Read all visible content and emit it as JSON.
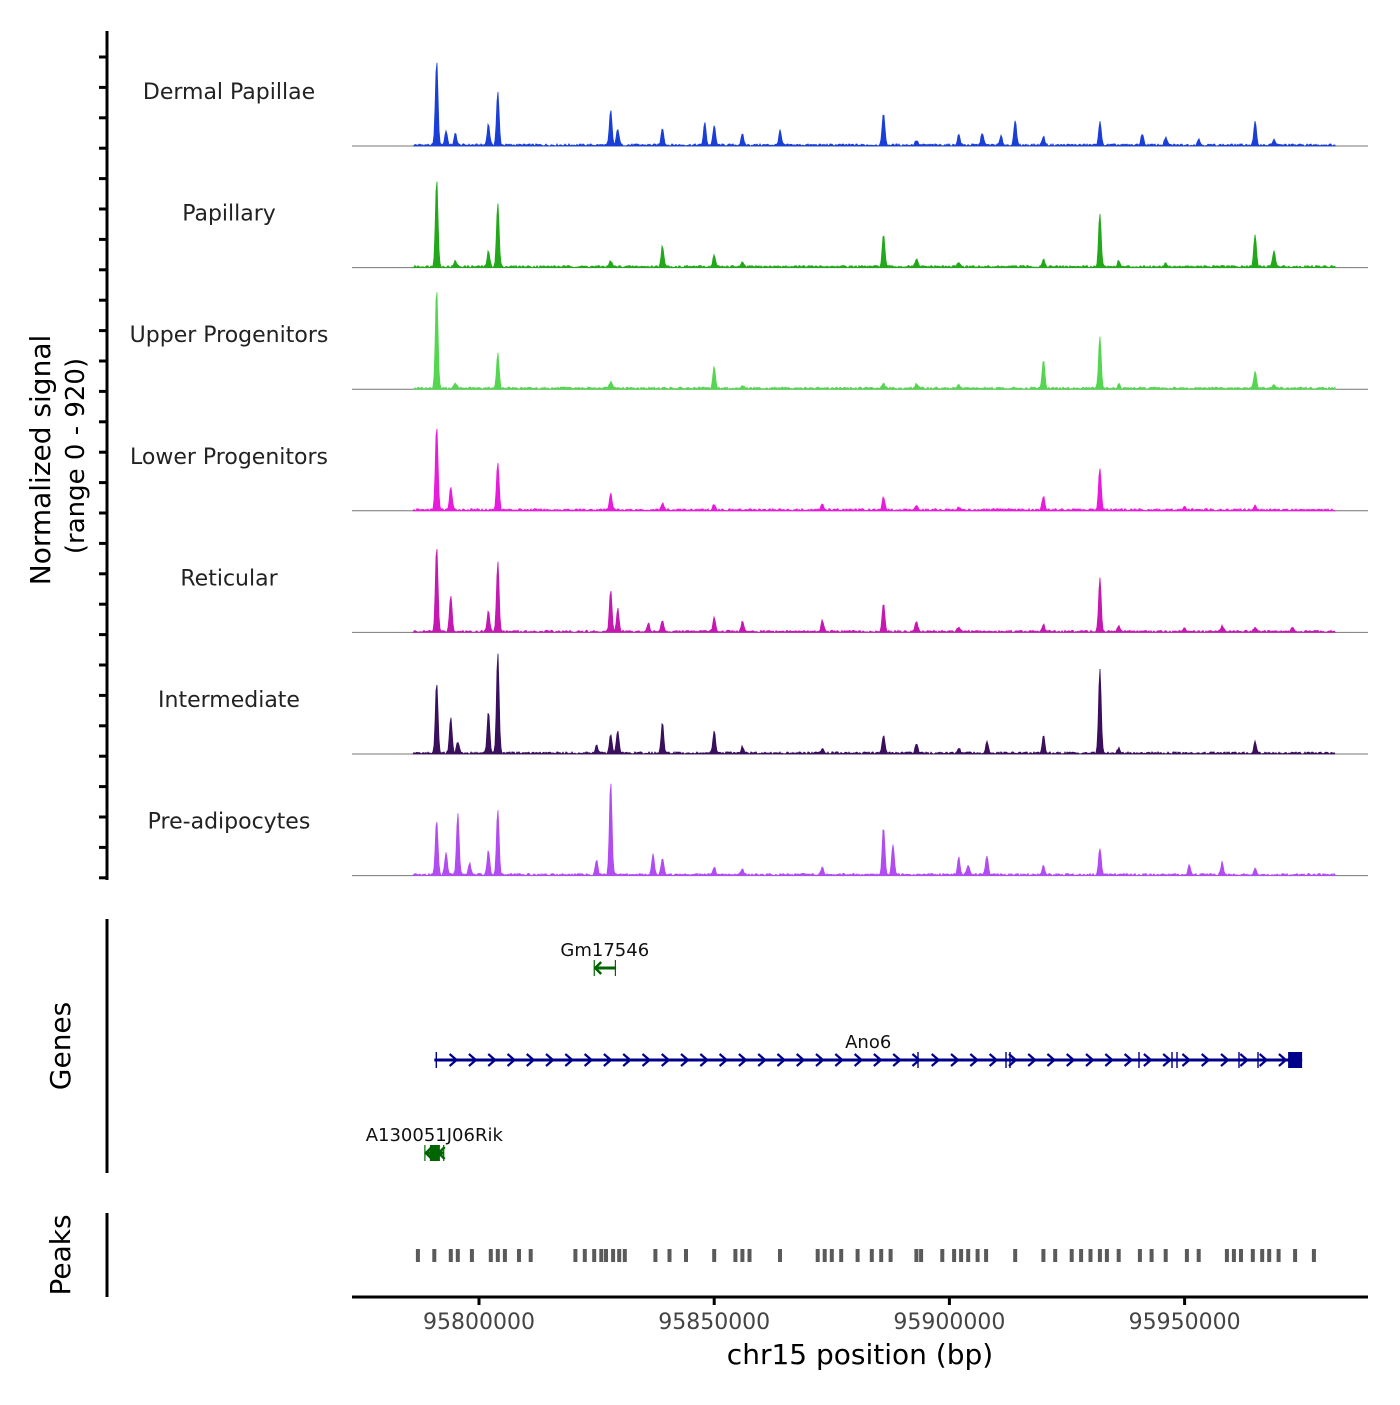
{
  "chart_data": {
    "type": "area",
    "x_unit": "bp",
    "xlabel": "chr15 position (bp)",
    "xlim": [
      95773000,
      95989000
    ],
    "x_ticks": [
      {
        "value": 95800000,
        "label": "95800000"
      },
      {
        "value": 95850000,
        "label": "95850000"
      },
      {
        "value": 95900000,
        "label": "95900000"
      },
      {
        "value": 95950000,
        "label": "95950000"
      }
    ],
    "coverage": {
      "ylabel_line1": "Normalized signal",
      "ylabel_line2": "(range 0 - 920)",
      "ylim": [
        0,
        920
      ],
      "series": [
        {
          "name": "Dermal Papillae",
          "color": "#1a3fd6",
          "peaks": [
            [
              95791000,
              880
            ],
            [
              95793000,
              150
            ],
            [
              95795000,
              120
            ],
            [
              95802000,
              220
            ],
            [
              95804000,
              550
            ],
            [
              95828000,
              360
            ],
            [
              95829500,
              170
            ],
            [
              95839000,
              180
            ],
            [
              95848000,
              230
            ],
            [
              95850000,
              200
            ],
            [
              95856000,
              110
            ],
            [
              95864000,
              150
            ],
            [
              95886000,
              340
            ],
            [
              95893000,
              50
            ],
            [
              95902000,
              110
            ],
            [
              95907000,
              130
            ],
            [
              95911000,
              90
            ],
            [
              95914000,
              250
            ],
            [
              95920000,
              90
            ],
            [
              95932000,
              240
            ],
            [
              95941000,
              120
            ],
            [
              95946000,
              80
            ],
            [
              95953000,
              60
            ],
            [
              95965000,
              240
            ],
            [
              95969000,
              60
            ]
          ]
        },
        {
          "name": "Papillary",
          "color": "#22a81a",
          "peaks": [
            [
              95791000,
              910
            ],
            [
              95795000,
              60
            ],
            [
              95802000,
              160
            ],
            [
              95804000,
              660
            ],
            [
              95828000,
              60
            ],
            [
              95839000,
              220
            ],
            [
              95850000,
              120
            ],
            [
              95856000,
              40
            ],
            [
              95886000,
              340
            ],
            [
              95893000,
              80
            ],
            [
              95902000,
              50
            ],
            [
              95920000,
              80
            ],
            [
              95932000,
              560
            ],
            [
              95936000,
              60
            ],
            [
              95946000,
              40
            ],
            [
              95965000,
              340
            ],
            [
              95969000,
              170
            ]
          ]
        },
        {
          "name": "Upper Progenitors",
          "color": "#55d650",
          "peaks": [
            [
              95791000,
              1040
            ],
            [
              95795000,
              50
            ],
            [
              95804000,
              360
            ],
            [
              95828000,
              70
            ],
            [
              95850000,
              220
            ],
            [
              95856000,
              30
            ],
            [
              95886000,
              50
            ],
            [
              95893000,
              50
            ],
            [
              95902000,
              30
            ],
            [
              95920000,
              300
            ],
            [
              95932000,
              540
            ],
            [
              95936000,
              40
            ],
            [
              95965000,
              180
            ],
            [
              95969000,
              40
            ]
          ]
        },
        {
          "name": "Lower Progenitors",
          "color": "#e81adb",
          "peaks": [
            [
              95791000,
              880
            ],
            [
              95794000,
              240
            ],
            [
              95804000,
              500
            ],
            [
              95828000,
              180
            ],
            [
              95839000,
              70
            ],
            [
              95850000,
              60
            ],
            [
              95873000,
              60
            ],
            [
              95886000,
              130
            ],
            [
              95893000,
              50
            ],
            [
              95902000,
              30
            ],
            [
              95920000,
              140
            ],
            [
              95932000,
              440
            ],
            [
              95950000,
              30
            ],
            [
              95965000,
              40
            ]
          ]
        },
        {
          "name": "Reticular",
          "color": "#c418b0",
          "peaks": [
            [
              95791000,
              880
            ],
            [
              95794000,
              380
            ],
            [
              95802000,
              220
            ],
            [
              95804000,
              720
            ],
            [
              95828000,
              440
            ],
            [
              95829500,
              240
            ],
            [
              95836000,
              90
            ],
            [
              95839000,
              120
            ],
            [
              95850000,
              150
            ],
            [
              95856000,
              100
            ],
            [
              95873000,
              120
            ],
            [
              95886000,
              300
            ],
            [
              95893000,
              110
            ],
            [
              95902000,
              50
            ],
            [
              95920000,
              70
            ],
            [
              95932000,
              560
            ],
            [
              95936000,
              60
            ],
            [
              95950000,
              40
            ],
            [
              95958000,
              60
            ],
            [
              95965000,
              50
            ],
            [
              95973000,
              50
            ]
          ]
        },
        {
          "name": "Intermediate",
          "color": "#3a0f5c",
          "peaks": [
            [
              95791000,
              740
            ],
            [
              95794000,
              380
            ],
            [
              95795500,
              120
            ],
            [
              95802000,
              440
            ],
            [
              95804000,
              1040
            ],
            [
              95825000,
              80
            ],
            [
              95828000,
              200
            ],
            [
              95829500,
              240
            ],
            [
              95839000,
              310
            ],
            [
              95850000,
              230
            ],
            [
              95856000,
              70
            ],
            [
              95873000,
              40
            ],
            [
              95886000,
              190
            ],
            [
              95893000,
              100
            ],
            [
              95902000,
              50
            ],
            [
              95908000,
              130
            ],
            [
              95920000,
              180
            ],
            [
              95932000,
              880
            ],
            [
              95936000,
              50
            ],
            [
              95965000,
              120
            ]
          ]
        },
        {
          "name": "Pre-adipocytes",
          "color": "#b14cf0",
          "peaks": [
            [
              95791000,
              570
            ],
            [
              95793000,
              220
            ],
            [
              95795500,
              640
            ],
            [
              95798000,
              120
            ],
            [
              95802000,
              250
            ],
            [
              95804000,
              670
            ],
            [
              95825000,
              150
            ],
            [
              95828000,
              960
            ],
            [
              95837000,
              220
            ],
            [
              95839000,
              180
            ],
            [
              95850000,
              80
            ],
            [
              95856000,
              60
            ],
            [
              95873000,
              70
            ],
            [
              95886000,
              500
            ],
            [
              95888000,
              320
            ],
            [
              95902000,
              180
            ],
            [
              95904000,
              100
            ],
            [
              95908000,
              200
            ],
            [
              95920000,
              100
            ],
            [
              95932000,
              280
            ],
            [
              95951000,
              100
            ],
            [
              95958000,
              130
            ],
            [
              95965000,
              60
            ]
          ]
        }
      ]
    },
    "genes": {
      "ylabel": "Genes",
      "items": [
        {
          "name": "Gm17546",
          "start": 95824500,
          "end": 95829000,
          "strand": "-",
          "color": "#006400",
          "row": 0
        },
        {
          "name": "Ano6",
          "start": 95790500,
          "end": 95975000,
          "strand": "+",
          "color": "#00008b",
          "row": 1
        },
        {
          "name": "A130051J06Rik",
          "start": 95788500,
          "end": 95792500,
          "strand": "-",
          "color": "#006400",
          "row": 2
        }
      ]
    },
    "peaks": {
      "ylabel": "Peaks",
      "color": "#5a5a5a",
      "positions": [
        95787000,
        95790500,
        95794000,
        95795500,
        95798500,
        95802500,
        95804000,
        95805500,
        95808500,
        95811000,
        95820500,
        95822500,
        95824500,
        95826000,
        95827000,
        95828500,
        95829800,
        95831000,
        95837500,
        95840500,
        95844000,
        95850000,
        95854500,
        95856000,
        95857500,
        95864000,
        95872000,
        95873500,
        95875000,
        95877000,
        95880500,
        95883500,
        95885500,
        95887500,
        95893000,
        95894000,
        95898500,
        95901000,
        95902500,
        95904000,
        95906000,
        95907800,
        95914000,
        95920000,
        95922500,
        95926000,
        95928000,
        95930000,
        95932000,
        95933500,
        95936000,
        95940500,
        95943000,
        95946000,
        95950500,
        95953000,
        95959000,
        95960500,
        95962000,
        95964500,
        95966500,
        95968000,
        95970000,
        95973500,
        95977500
      ]
    }
  }
}
